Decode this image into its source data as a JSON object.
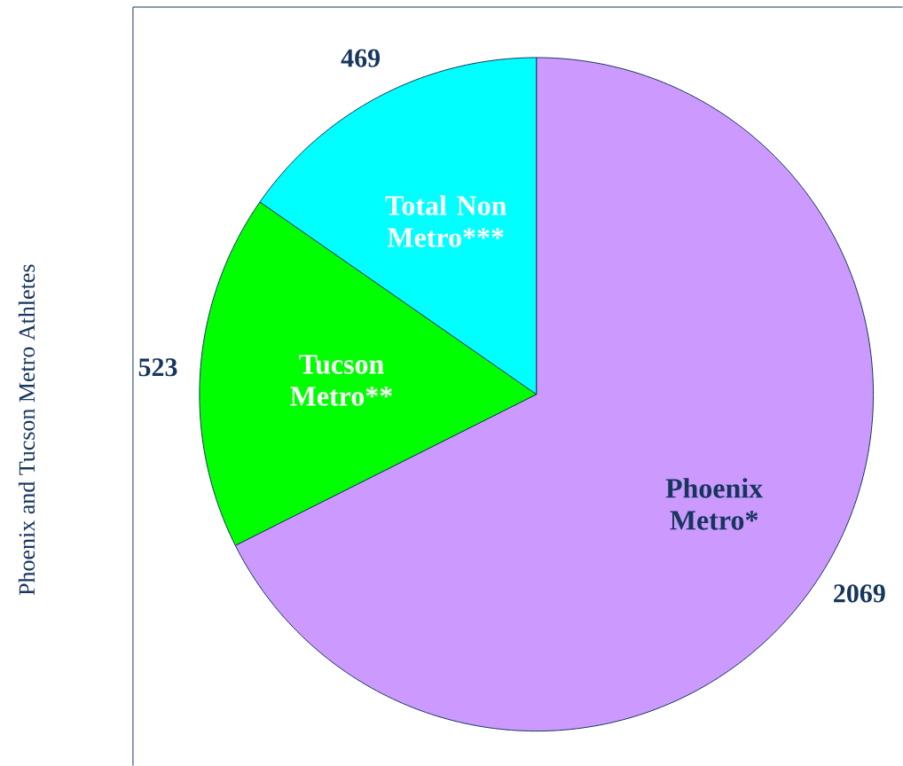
{
  "chart_data": {
    "type": "pie",
    "ylabel": "Phoenix and Tucson Metro Athletes",
    "categories": [
      "Phoenix Metro*",
      "Tucson Metro**",
      "Total Non Metro***"
    ],
    "values": [
      2069,
      523,
      469
    ],
    "colors": [
      "#cc99ff",
      "#00ff00",
      "#00ffff"
    ],
    "data_labels": true
  }
}
